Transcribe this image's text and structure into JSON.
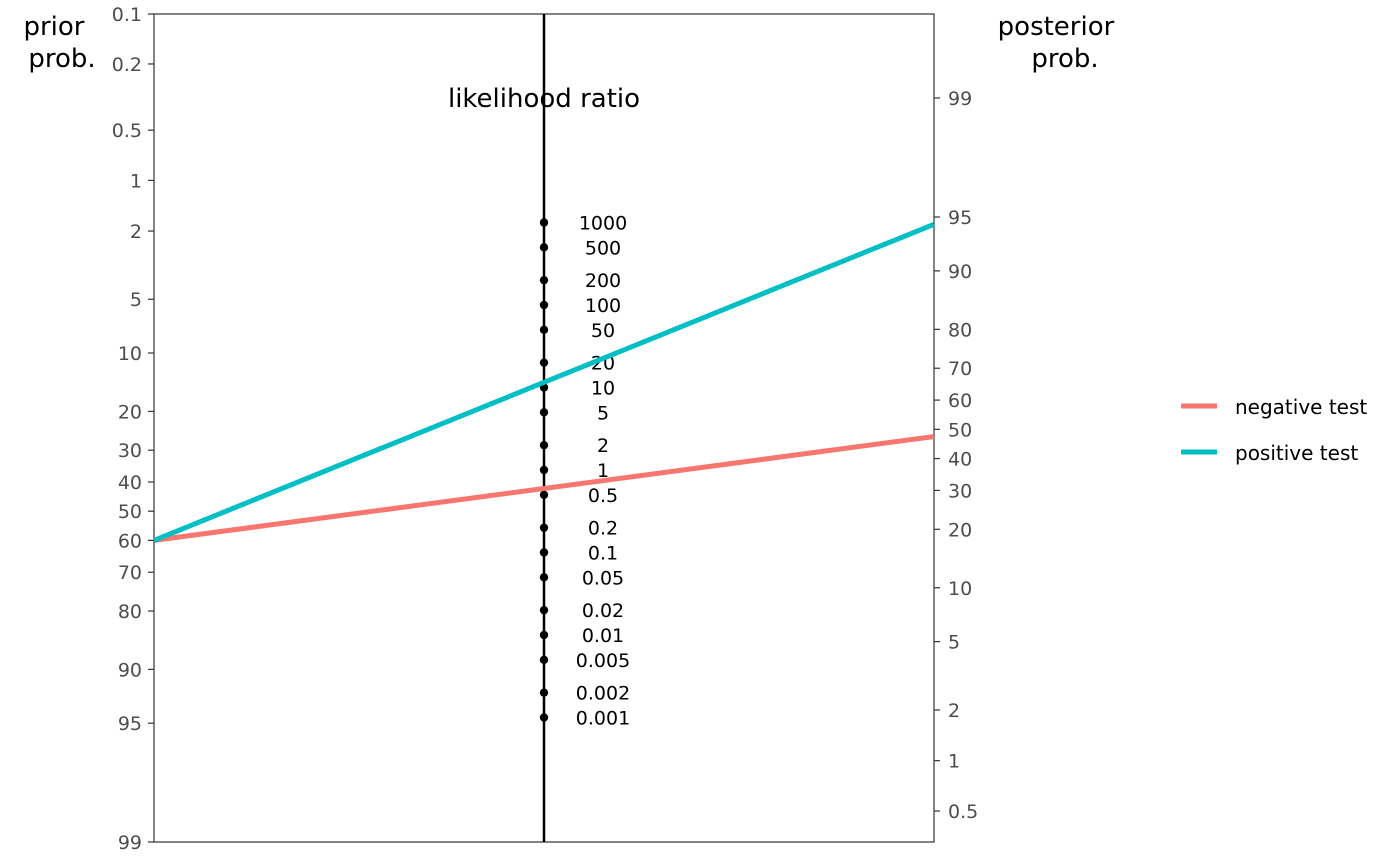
{
  "chart_data": {
    "type": "line",
    "title": "likelihood ratio",
    "left_axis": {
      "label_line1": "prior",
      "label_line2": "prob.",
      "ticks": [
        "0.1",
        "0.2",
        "0.5",
        "1",
        "2",
        "5",
        "10",
        "20",
        "30",
        "40",
        "50",
        "60",
        "70",
        "80",
        "90",
        "95",
        "99"
      ],
      "tick_values": [
        0.1,
        0.2,
        0.5,
        1,
        2,
        5,
        10,
        20,
        30,
        40,
        50,
        60,
        70,
        80,
        90,
        95,
        99
      ],
      "direction": "reversed, logit scale"
    },
    "right_axis": {
      "label_line1": "posterior",
      "label_line2": "prob.",
      "ticks": [
        "99",
        "95",
        "90",
        "80",
        "70",
        "60",
        "50",
        "40",
        "30",
        "20",
        "10",
        "5",
        "2",
        "1",
        "0.5"
      ],
      "tick_values": [
        99,
        95,
        90,
        80,
        70,
        60,
        50,
        40,
        30,
        20,
        10,
        5,
        2,
        1,
        0.5
      ],
      "direction": "logit scale"
    },
    "likelihood_ratio_axis": {
      "ticks": [
        "1000",
        "500",
        "200",
        "100",
        "50",
        "20",
        "10",
        "5",
        "2",
        "1",
        "0.5",
        "0.2",
        "0.1",
        "0.05",
        "0.02",
        "0.01",
        "0.005",
        "0.002",
        "0.001"
      ],
      "tick_values": [
        1000,
        500,
        200,
        100,
        50,
        20,
        10,
        5,
        2,
        1,
        0.5,
        0.2,
        0.1,
        0.05,
        0.02,
        0.01,
        0.005,
        0.002,
        0.001
      ]
    },
    "series": [
      {
        "name": "negative test",
        "color": "#F8766D",
        "prior": 60,
        "posterior": 47.5
      },
      {
        "name": "positive test",
        "color": "#00BFC4",
        "prior": 60,
        "posterior": 94.5
      }
    ],
    "legend": {
      "position": "right"
    },
    "grid": false
  }
}
